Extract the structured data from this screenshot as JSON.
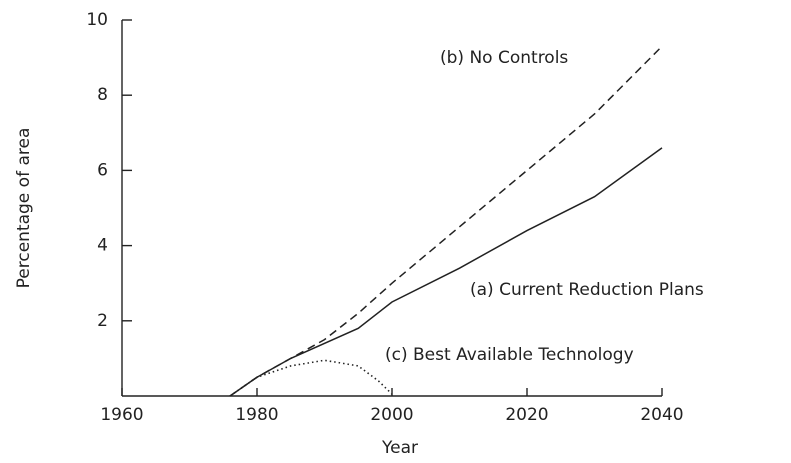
{
  "chart_data": {
    "type": "line",
    "x_label": "Year",
    "y_label": "Percentage of area",
    "xlim": [
      1960,
      2040
    ],
    "xticks": [
      1960,
      1980,
      2000,
      2020,
      2040
    ],
    "ylim": [
      0,
      10
    ],
    "yticks": [
      2,
      4,
      6,
      8,
      10
    ],
    "series": [
      {
        "name": "(a) Current Reduction Plans",
        "color": "#222222",
        "dash": "solid",
        "x": [
          1976,
          1980,
          1985,
          1995,
          2000,
          2010,
          2020,
          2030,
          2040
        ],
        "values": [
          0,
          0.5,
          1.0,
          1.8,
          2.5,
          3.4,
          4.4,
          5.3,
          6.6
        ]
      },
      {
        "name": "(b) No Controls",
        "color": "#222222",
        "dash": "dashed",
        "x": [
          1976,
          1980,
          1985,
          1990,
          1995,
          2000,
          2010,
          2020,
          2030,
          2040
        ],
        "values": [
          0,
          0.5,
          1.0,
          1.5,
          2.2,
          3.0,
          4.5,
          6.0,
          7.5,
          9.3
        ]
      },
      {
        "name": "(c) Best Available Technology",
        "color": "#222222",
        "dash": "dotted",
        "x": [
          1976,
          1980,
          1985,
          1990,
          1995,
          1998,
          2000
        ],
        "values": [
          0,
          0.5,
          0.8,
          0.95,
          0.8,
          0.4,
          0.05
        ]
      }
    ]
  }
}
